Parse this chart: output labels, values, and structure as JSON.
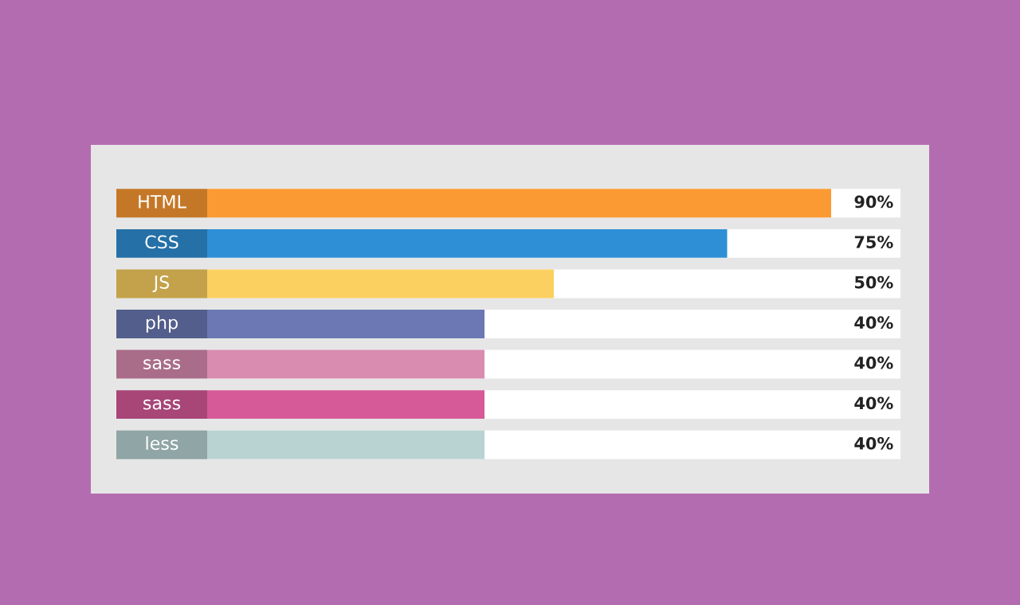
{
  "chart_data": {
    "type": "bar",
    "orientation": "horizontal",
    "categories": [
      "HTML",
      "CSS",
      "JS",
      "php",
      "sass",
      "sass",
      "less"
    ],
    "values": [
      90,
      75,
      50,
      40,
      40,
      40,
      40
    ],
    "colors": [
      "#fb9a32",
      "#2e8fd6",
      "#fbd060",
      "#6b78b4",
      "#d98cb0",
      "#d65a98",
      "#b9d3d3"
    ],
    "value_labels": [
      "90%",
      "75%",
      "50%",
      "40%",
      "40%",
      "40%",
      "40%"
    ],
    "xlim": [
      0,
      100
    ],
    "tick_labels": false
  }
}
